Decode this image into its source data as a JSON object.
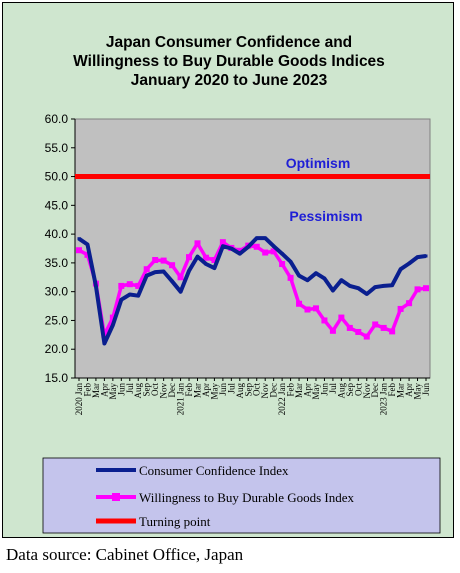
{
  "chart_data": {
    "type": "line",
    "title_lines": [
      "Japan Consumer Confidence and",
      "Willingness to Buy Durable Goods Indices",
      "January 2020 to June 2023"
    ],
    "ylim": [
      15.0,
      60.0
    ],
    "yticks": [
      "15.0",
      "20.0",
      "25.0",
      "30.0",
      "35.0",
      "40.0",
      "45.0",
      "50.0",
      "55.0",
      "60.0"
    ],
    "x_labels": [
      "2020 Jan",
      "Feb",
      "Mar",
      "Apr",
      "May",
      "Jun",
      "Jul",
      "Aug",
      "Sep",
      "Oct",
      "Nov",
      "Dec",
      "2021 Jan",
      "Feb",
      "Mar",
      "Apr",
      "May",
      "Jun",
      "Jul",
      "Aug",
      "Sep",
      "Oct",
      "Nov",
      "Dec",
      "2022 Jan",
      "Feb",
      "Mar",
      "Apr",
      "May",
      "Jun",
      "Jul",
      "Aug",
      "Sep",
      "Oct",
      "Nov",
      "Dec",
      "2023 Jan",
      "Feb",
      "Mar",
      "Apr",
      "May",
      "Jun"
    ],
    "series": [
      {
        "name": "Consumer Confidence Index",
        "color": "#0a1f8f",
        "values": [
          39.2,
          38.2,
          31.0,
          21.0,
          24.2,
          28.6,
          29.5,
          29.3,
          32.8,
          33.4,
          33.5,
          31.8,
          30.0,
          33.6,
          36.1,
          34.8,
          34.1,
          37.9,
          37.5,
          36.6,
          37.8,
          39.3,
          39.3,
          37.9,
          36.6,
          35.2,
          32.8,
          32.0,
          33.2,
          32.3,
          30.2,
          32.0,
          31.0,
          30.6,
          29.6,
          30.8,
          31.0,
          31.1,
          33.9,
          34.9,
          36.0,
          36.2
        ]
      },
      {
        "name": "Willingness to Buy Durable Goods Index",
        "color": "#ff00ff",
        "values": [
          37.2,
          36.4,
          31.4,
          22.5,
          25.5,
          31.0,
          31.3,
          31.0,
          33.9,
          35.5,
          35.4,
          34.6,
          32.5,
          36.0,
          38.4,
          35.9,
          35.5,
          38.6,
          37.6,
          37.1,
          38.0,
          37.8,
          36.8,
          37.0,
          34.8,
          32.4,
          27.9,
          26.9,
          27.1,
          25.0,
          23.2,
          25.5,
          23.7,
          23.0,
          22.2,
          24.3,
          23.7,
          23.1,
          27.0,
          28.0,
          30.4,
          30.6
        ]
      },
      {
        "name": "Turning point",
        "color": "#ff0000",
        "values": [
          50.0,
          50.0
        ]
      }
    ],
    "annotations": [
      "Optimism",
      "Pessimism"
    ],
    "grid": false,
    "legend_position": "bottom"
  },
  "source_text": "Data source: Cabinet Office, Japan"
}
